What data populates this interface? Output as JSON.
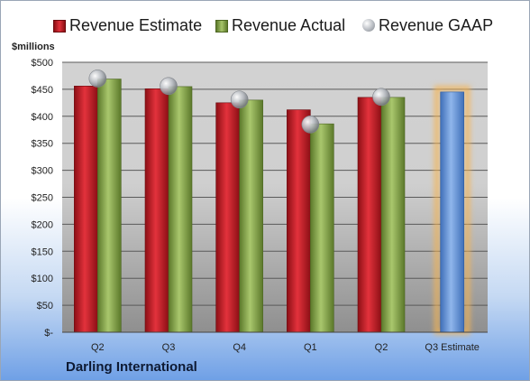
{
  "company": "Darling International",
  "legend": {
    "estimate": "Revenue Estimate",
    "actual": "Revenue Actual",
    "gaap": "Revenue GAAP"
  },
  "colors": {
    "estimate": "#c8202a",
    "actual": "#8cab4f",
    "gaap": "#b0b4ba",
    "forecast": "#6f9ad9",
    "forecast_glow": "#f5b451"
  },
  "chart_data": {
    "type": "bar",
    "categories": [
      "Q2",
      "Q3",
      "Q4",
      "Q1",
      "Q2",
      "Q3 Estimate"
    ],
    "series": [
      {
        "name": "Revenue Estimate",
        "values": [
          456,
          451,
          425,
          412,
          435,
          null
        ]
      },
      {
        "name": "Revenue Actual",
        "values": [
          469,
          455,
          430,
          386,
          435,
          null
        ]
      },
      {
        "name": "Revenue GAAP",
        "values": [
          470,
          456,
          431,
          385,
          436,
          null
        ]
      }
    ],
    "forecast": {
      "category": "Q3 Estimate",
      "value": 445
    },
    "ylabel": "$millions",
    "ylim": [
      0,
      500
    ],
    "yticks": [
      0,
      50,
      100,
      150,
      200,
      250,
      300,
      350,
      400,
      450,
      500
    ],
    "ytick_labels": [
      "$-",
      "$50",
      "$100",
      "$150",
      "$200",
      "$250",
      "$300",
      "$350",
      "$400",
      "$450",
      "$500"
    ],
    "grid": true,
    "legend_position": "top"
  }
}
